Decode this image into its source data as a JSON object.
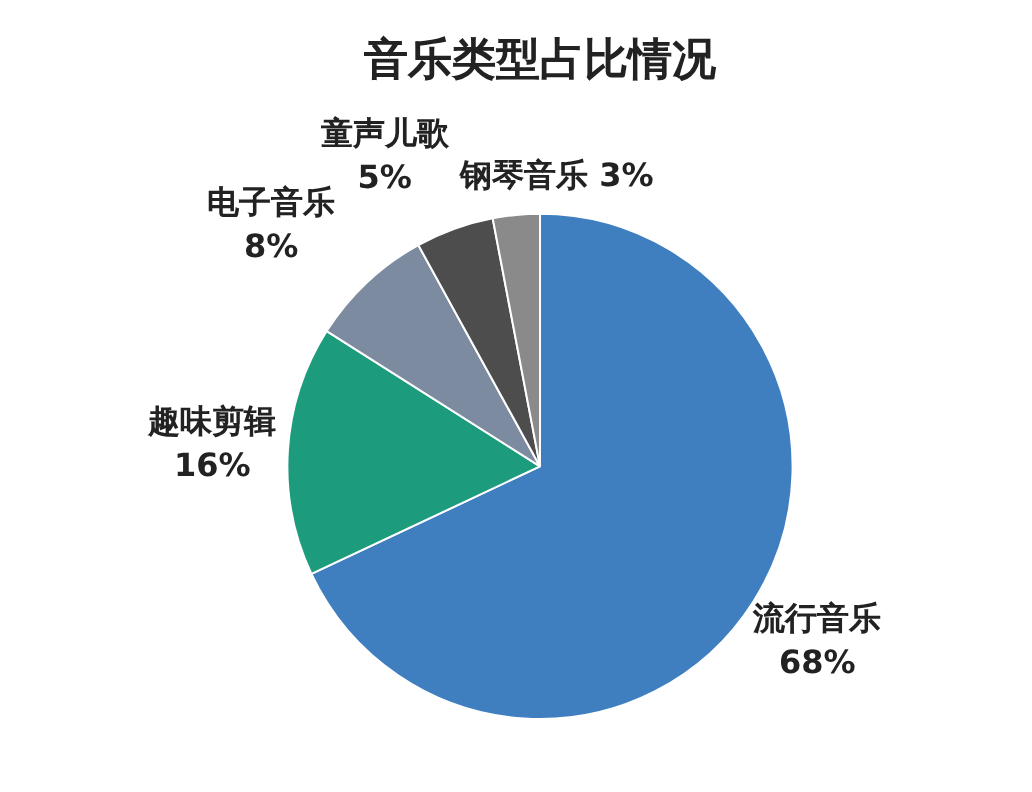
{
  "chart_data": {
    "type": "pie",
    "title": "音乐类型占比情况",
    "categories": [
      "流行音乐",
      "趣味剪辑",
      "电子音乐",
      "童声儿歌",
      "钢琴音乐"
    ],
    "values": [
      68,
      16,
      8,
      5,
      3
    ],
    "value_labels": [
      "68%",
      "16%",
      "8%",
      "5%",
      "3%"
    ],
    "colors": [
      "#3f7fc0",
      "#1d9c7d",
      "#7c8ba0",
      "#4d4d4d",
      "#8a8a8a"
    ],
    "legend": false
  }
}
